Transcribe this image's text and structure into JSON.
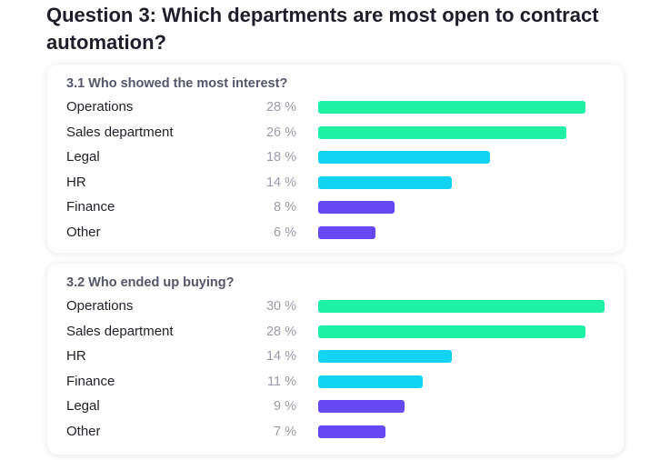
{
  "title": "Question 3: Which departments are most open to contract automation?",
  "colors": {
    "high": "#1ef0a6",
    "mid": "#13d3f2",
    "low": "#6648f4"
  },
  "chart_data": [
    {
      "type": "bar",
      "orientation": "horizontal",
      "title": "3.1 Who showed the most interest?",
      "categories": [
        "Operations",
        "Sales department",
        "Legal",
        "HR",
        "Finance",
        "Other"
      ],
      "values": [
        28,
        26,
        18,
        14,
        8,
        6
      ],
      "value_labels": [
        "28 %",
        "26 %",
        "18 %",
        "14 %",
        "8 %",
        "6 %"
      ],
      "bar_colors": [
        "high",
        "high",
        "mid",
        "mid",
        "low",
        "low"
      ],
      "xlim": [
        0,
        30
      ],
      "grid": false,
      "legend": "none"
    },
    {
      "type": "bar",
      "orientation": "horizontal",
      "title": "3.2 Who ended up buying?",
      "categories": [
        "Operations",
        "Sales department",
        "HR",
        "Finance",
        "Legal",
        "Other"
      ],
      "values": [
        30,
        28,
        14,
        11,
        9,
        7
      ],
      "value_labels": [
        "30 %",
        "28 %",
        "14 %",
        "11 %",
        "9 %",
        "7 %"
      ],
      "bar_colors": [
        "high",
        "high",
        "mid",
        "mid",
        "low",
        "low"
      ],
      "xlim": [
        0,
        30
      ],
      "grid": false,
      "legend": "none"
    }
  ]
}
